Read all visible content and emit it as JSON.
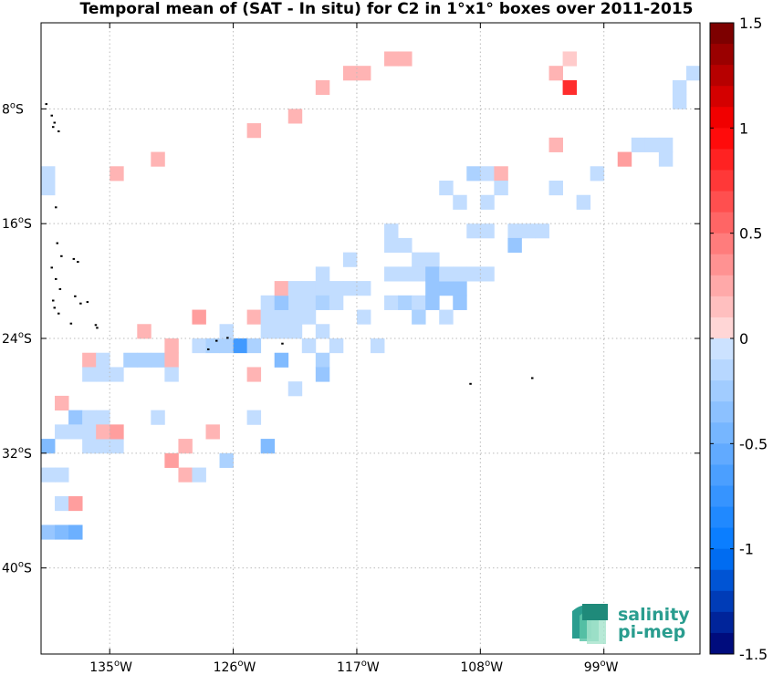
{
  "chart_data": {
    "type": "heatmap",
    "title": "Temporal mean of (SAT - In situ) for C2 in 1°x1° boxes over 2011-2015",
    "lon_range": [
      -140,
      -92
    ],
    "lat_range": [
      -46,
      -2
    ],
    "x_ticks": [
      {
        "value": -135,
        "deg": "135",
        "hemi": "W"
      },
      {
        "value": -126,
        "deg": "126",
        "hemi": "W"
      },
      {
        "value": -117,
        "deg": "117",
        "hemi": "W"
      },
      {
        "value": -108,
        "deg": "108",
        "hemi": "W"
      },
      {
        "value": -99,
        "deg": "99",
        "hemi": "W"
      }
    ],
    "y_ticks": [
      {
        "value": -8,
        "deg": "8",
        "hemi": "S"
      },
      {
        "value": -16,
        "deg": "16",
        "hemi": "S"
      },
      {
        "value": -24,
        "deg": "24",
        "hemi": "S"
      },
      {
        "value": -32,
        "deg": "32",
        "hemi": "S"
      },
      {
        "value": -40,
        "deg": "40",
        "hemi": "S"
      }
    ],
    "grid": true,
    "colorbar": {
      "range": [
        -1.5,
        1.5
      ],
      "levels": 30,
      "ticks": [
        {
          "value": 1.5,
          "label": "1.5"
        },
        {
          "value": 1,
          "label": "1"
        },
        {
          "value": 0.5,
          "label": "0.5"
        },
        {
          "value": 0,
          "label": "0"
        },
        {
          "value": -0.5,
          "label": "-0.5"
        },
        {
          "value": -1,
          "label": "-1"
        },
        {
          "value": -1.5,
          "label": "-1.5"
        }
      ]
    },
    "cells": [
      [
        -140,
        -12,
        -0.1
      ],
      [
        -140,
        -13,
        -0.1
      ],
      [
        -140,
        -31,
        -0.4
      ],
      [
        -140,
        -33,
        -0.1
      ],
      [
        -139,
        -33,
        -0.1
      ],
      [
        -139,
        -30,
        -0.1
      ],
      [
        -139,
        -28,
        0.2
      ],
      [
        -139,
        -35,
        -0.1
      ],
      [
        -138,
        -35,
        0.3
      ],
      [
        -140,
        -37,
        -0.3
      ],
      [
        -139,
        -37,
        -0.4
      ],
      [
        -138,
        -37,
        -0.5
      ],
      [
        -138,
        -29,
        -0.3
      ],
      [
        -137,
        -29,
        -0.1
      ],
      [
        -136,
        -29,
        -0.1
      ],
      [
        -138,
        -30,
        -0.1
      ],
      [
        -137,
        -30,
        -0.1
      ],
      [
        -137,
        -31,
        -0.1
      ],
      [
        -136,
        -31,
        -0.1
      ],
      [
        -135,
        -31,
        -0.1
      ],
      [
        -136,
        -30,
        0.2
      ],
      [
        -135,
        -30,
        0.3
      ],
      [
        -137,
        -25,
        0.2
      ],
      [
        -136,
        -25,
        -0.1
      ],
      [
        -137,
        -26,
        -0.1
      ],
      [
        -136,
        -26,
        -0.1
      ],
      [
        -135,
        -26,
        -0.1
      ],
      [
        -135,
        -12,
        0.2
      ],
      [
        -132,
        -11,
        0.2
      ],
      [
        -134,
        -25,
        -0.2
      ],
      [
        -133,
        -25,
        -0.2
      ],
      [
        -132,
        -25,
        -0.2
      ],
      [
        -133,
        -23,
        0.2
      ],
      [
        -131,
        -24,
        0.2
      ],
      [
        -131,
        -25,
        0.2
      ],
      [
        -131,
        -26,
        -0.1
      ],
      [
        -132,
        -29,
        -0.1
      ],
      [
        -129,
        -22,
        0.3
      ],
      [
        -129,
        -24,
        -0.1
      ],
      [
        -128,
        -24,
        -0.2
      ],
      [
        -127,
        -24,
        -0.2
      ],
      [
        -126,
        -24,
        -0.7
      ],
      [
        -125,
        -24,
        -0.2
      ],
      [
        -127,
        -23,
        -0.1
      ],
      [
        -130,
        -31,
        0.2
      ],
      [
        -128,
        -30,
        0.2
      ],
      [
        -127,
        -32,
        -0.2
      ],
      [
        -131,
        -32,
        0.3
      ],
      [
        -130,
        -33,
        0.2
      ],
      [
        -129,
        -33,
        -0.1
      ],
      [
        -125,
        -9,
        0.2
      ],
      [
        -125,
        -22,
        0.2
      ],
      [
        -125,
        -26,
        0.2
      ],
      [
        -125,
        -29,
        -0.1
      ],
      [
        -124,
        -31,
        -0.4
      ],
      [
        -123,
        -25,
        -0.4
      ],
      [
        -124,
        -21,
        -0.1
      ],
      [
        -123,
        -21,
        -0.1
      ],
      [
        -122,
        -21,
        -0.1
      ],
      [
        -124,
        -22,
        -0.1
      ],
      [
        -123,
        -22,
        -0.1
      ],
      [
        -122,
        -22,
        -0.1
      ],
      [
        -124,
        -23,
        -0.1
      ],
      [
        -123,
        -23,
        -0.1
      ],
      [
        -122,
        -23,
        -0.1
      ],
      [
        -123,
        -21,
        -0.3
      ],
      [
        -123,
        -20,
        0.2
      ],
      [
        -122,
        -20,
        -0.1
      ],
      [
        -121,
        -20,
        -0.1
      ],
      [
        -120,
        -20,
        -0.1
      ],
      [
        -119,
        -20,
        -0.1
      ],
      [
        -118,
        -20,
        -0.1
      ],
      [
        -117,
        -20,
        -0.1
      ],
      [
        -120,
        -19,
        -0.1
      ],
      [
        -121,
        -21,
        -0.1
      ],
      [
        -120,
        -21,
        -0.2
      ],
      [
        -119,
        -21,
        -0.1
      ],
      [
        -121,
        -22,
        -0.1
      ],
      [
        -120,
        -23,
        -0.1
      ],
      [
        -121,
        -24,
        -0.1
      ],
      [
        -119,
        -24,
        -0.1
      ],
      [
        -120,
        -25,
        -0.2
      ],
      [
        -120,
        -26,
        -0.3
      ],
      [
        -122,
        -27,
        -0.1
      ],
      [
        -118,
        -18,
        -0.1
      ],
      [
        -117,
        -22,
        -0.1
      ],
      [
        -116,
        -24,
        -0.1
      ],
      [
        -122,
        -8,
        0.2
      ],
      [
        -120,
        -6,
        0.2
      ],
      [
        -118,
        -5,
        0.2
      ],
      [
        -117,
        -5,
        0.2
      ],
      [
        -115,
        -4,
        0.2
      ],
      [
        -114,
        -4,
        0.2
      ],
      [
        -115,
        -19,
        -0.1
      ],
      [
        -114,
        -19,
        -0.1
      ],
      [
        -113,
        -19,
        -0.1
      ],
      [
        -115,
        -21,
        -0.1
      ],
      [
        -114,
        -21,
        -0.2
      ],
      [
        -113,
        -21,
        -0.1
      ],
      [
        -112,
        -21,
        -0.3
      ],
      [
        -115,
        -16,
        -0.1
      ],
      [
        -115,
        -17,
        -0.1
      ],
      [
        -114,
        -17,
        -0.1
      ],
      [
        -113,
        -18,
        -0.1
      ],
      [
        -112,
        -18,
        -0.1
      ],
      [
        -112,
        -19,
        -0.3
      ],
      [
        -112,
        -20,
        -0.3
      ],
      [
        -111,
        -20,
        -0.3
      ],
      [
        -110,
        -20,
        -0.3
      ],
      [
        -111,
        -19,
        -0.1
      ],
      [
        -110,
        -19,
        -0.1
      ],
      [
        -109,
        -19,
        -0.1
      ],
      [
        -108,
        -19,
        -0.1
      ],
      [
        -109,
        -16,
        -0.1
      ],
      [
        -108,
        -16,
        -0.1
      ],
      [
        -110,
        -21,
        -0.3
      ],
      [
        -113,
        -22,
        -0.2
      ],
      [
        -111,
        -22,
        -0.1
      ],
      [
        -111,
        -13,
        -0.1
      ],
      [
        -109,
        -12,
        -0.2
      ],
      [
        -108,
        -12,
        -0.1
      ],
      [
        -107,
        -12,
        0.2
      ],
      [
        -108,
        -14,
        -0.1
      ],
      [
        -107,
        -13,
        -0.1
      ],
      [
        -110,
        -14,
        -0.1
      ],
      [
        -106,
        -16,
        -0.1
      ],
      [
        -105,
        -16,
        -0.1
      ],
      [
        -104,
        -16,
        -0.1
      ],
      [
        -106,
        -17,
        -0.3
      ],
      [
        -103,
        -10,
        0.2
      ],
      [
        -103,
        -13,
        -0.1
      ],
      [
        -101,
        -14,
        -0.1
      ],
      [
        -103,
        -5,
        0.2
      ],
      [
        -102,
        -6,
        0.8
      ],
      [
        -102,
        -4,
        0.1
      ],
      [
        -100,
        -12,
        -0.1
      ],
      [
        -98,
        -11,
        0.3
      ],
      [
        -97,
        -10,
        -0.1
      ],
      [
        -96,
        -10,
        -0.1
      ],
      [
        -95,
        -10,
        -0.1
      ],
      [
        -95,
        -11,
        -0.1
      ],
      [
        -94,
        -6,
        -0.1
      ],
      [
        -93,
        -5,
        -0.1
      ],
      [
        -94,
        -7,
        -0.1
      ]
    ]
  },
  "logo": {
    "line1": "salinity",
    "line2": "pi-mep"
  }
}
